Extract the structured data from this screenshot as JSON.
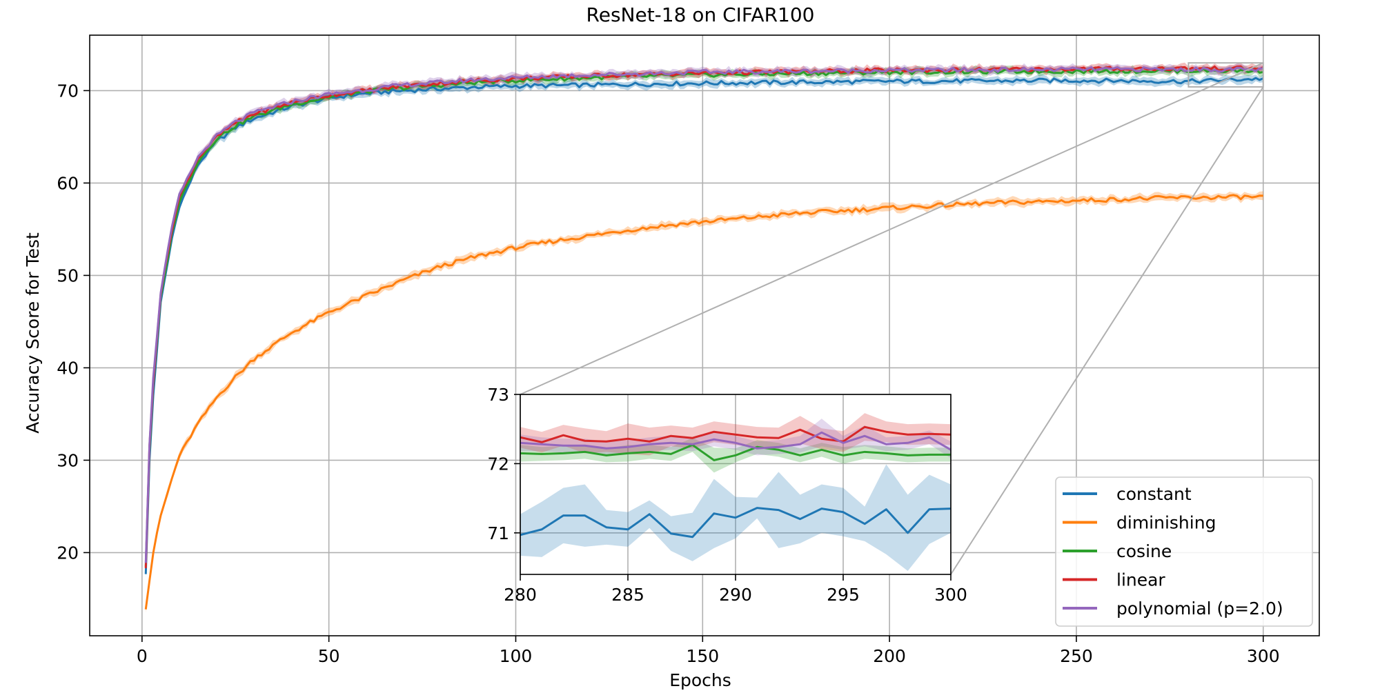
{
  "chart_data": {
    "type": "line",
    "title": "ResNet-18 on CIFAR100",
    "xlabel": "Epochs",
    "ylabel": "Accuracy Score for Test",
    "xlim": [
      -14,
      315
    ],
    "ylim": [
      11,
      76
    ],
    "xticks": [
      0,
      50,
      100,
      150,
      200,
      250,
      300
    ],
    "yticks": [
      20,
      30,
      40,
      50,
      60,
      70
    ],
    "grid": true,
    "legend_position": "lower-right",
    "series": [
      {
        "name": "constant",
        "color": "#1f77b4",
        "points": [
          [
            1,
            17.6
          ],
          [
            2,
            30
          ],
          [
            3,
            37
          ],
          [
            5,
            47
          ],
          [
            8,
            54
          ],
          [
            10,
            57.5
          ],
          [
            15,
            62
          ],
          [
            20,
            64.5
          ],
          [
            25,
            66
          ],
          [
            30,
            67
          ],
          [
            40,
            68.3
          ],
          [
            50,
            69.2
          ],
          [
            60,
            69.7
          ],
          [
            70,
            70
          ],
          [
            80,
            70.2
          ],
          [
            90,
            70.4
          ],
          [
            100,
            70.5
          ],
          [
            120,
            70.6
          ],
          [
            150,
            70.8
          ],
          [
            200,
            71
          ],
          [
            250,
            71.1
          ],
          [
            280,
            71
          ],
          [
            300,
            71.3
          ]
        ]
      },
      {
        "name": "diminishing",
        "color": "#ff7f0e",
        "points": [
          [
            1,
            14
          ],
          [
            2,
            17
          ],
          [
            3,
            20
          ],
          [
            5,
            24
          ],
          [
            8,
            28
          ],
          [
            10,
            30.5
          ],
          [
            15,
            34
          ],
          [
            20,
            36.8
          ],
          [
            25,
            39
          ],
          [
            30,
            41
          ],
          [
            40,
            43.8
          ],
          [
            50,
            46
          ],
          [
            60,
            47.8
          ],
          [
            70,
            49.5
          ],
          [
            80,
            51
          ],
          [
            90,
            52.1
          ],
          [
            100,
            53
          ],
          [
            110,
            53.7
          ],
          [
            120,
            54.3
          ],
          [
            130,
            54.9
          ],
          [
            140,
            55.4
          ],
          [
            150,
            55.8
          ],
          [
            175,
            56.7
          ],
          [
            200,
            57.3
          ],
          [
            225,
            57.8
          ],
          [
            250,
            58.1
          ],
          [
            275,
            58.4
          ],
          [
            300,
            58.5
          ]
        ]
      },
      {
        "name": "cosine",
        "color": "#2ca02c",
        "points": [
          [
            1,
            18.5
          ],
          [
            2,
            31
          ],
          [
            3,
            38
          ],
          [
            5,
            47.5
          ],
          [
            8,
            54.5
          ],
          [
            10,
            58
          ],
          [
            15,
            62.3
          ],
          [
            20,
            64.8
          ],
          [
            25,
            66.2
          ],
          [
            30,
            67.2
          ],
          [
            40,
            68.5
          ],
          [
            50,
            69.3
          ],
          [
            60,
            69.9
          ],
          [
            70,
            70.3
          ],
          [
            80,
            70.6
          ],
          [
            90,
            70.9
          ],
          [
            100,
            71.1
          ],
          [
            120,
            71.4
          ],
          [
            150,
            71.7
          ],
          [
            200,
            72
          ],
          [
            250,
            72.1
          ],
          [
            280,
            72.15
          ],
          [
            300,
            72.15
          ]
        ]
      },
      {
        "name": "linear",
        "color": "#d62728",
        "points": [
          [
            1,
            18.2
          ],
          [
            2,
            31.5
          ],
          [
            3,
            38.5
          ],
          [
            5,
            48
          ],
          [
            8,
            55
          ],
          [
            10,
            58.5
          ],
          [
            15,
            62.7
          ],
          [
            20,
            65
          ],
          [
            25,
            66.5
          ],
          [
            30,
            67.5
          ],
          [
            40,
            68.7
          ],
          [
            50,
            69.5
          ],
          [
            60,
            70
          ],
          [
            70,
            70.5
          ],
          [
            80,
            70.8
          ],
          [
            90,
            71.1
          ],
          [
            100,
            71.3
          ],
          [
            120,
            71.6
          ],
          [
            150,
            71.9
          ],
          [
            200,
            72.2
          ],
          [
            250,
            72.35
          ],
          [
            280,
            72.4
          ],
          [
            300,
            72.4
          ]
        ]
      },
      {
        "name": "polynomial (p=2.0)",
        "color": "#9467bd",
        "points": [
          [
            1,
            19
          ],
          [
            2,
            31.8
          ],
          [
            3,
            38.8
          ],
          [
            5,
            48.2
          ],
          [
            8,
            55.2
          ],
          [
            10,
            58.7
          ],
          [
            15,
            62.8
          ],
          [
            20,
            65.1
          ],
          [
            25,
            66.6
          ],
          [
            30,
            67.6
          ],
          [
            40,
            68.8
          ],
          [
            50,
            69.6
          ],
          [
            60,
            70.1
          ],
          [
            70,
            70.6
          ],
          [
            80,
            70.9
          ],
          [
            90,
            71.2
          ],
          [
            100,
            71.4
          ],
          [
            120,
            71.7
          ],
          [
            150,
            72
          ],
          [
            200,
            72.2
          ],
          [
            250,
            72.3
          ],
          [
            280,
            72.3
          ],
          [
            300,
            72.25
          ]
        ]
      }
    ],
    "inset": {
      "xlim": [
        280,
        300
      ],
      "ylim": [
        70.4,
        73
      ],
      "xticks": [
        280,
        285,
        290,
        295,
        300
      ],
      "yticks": [
        71,
        72,
        73
      ],
      "series": [
        {
          "name": "constant",
          "color": "#1f77b4",
          "values": [
            70.97,
            71.05,
            71.25,
            71.25,
            71.08,
            71.05,
            71.27,
            70.99,
            70.94,
            71.28,
            71.22,
            71.36,
            71.33,
            71.2,
            71.35,
            71.3,
            71.13,
            71.34,
            71.0,
            71.34,
            71.35
          ],
          "band": [
            0.3,
            0.4,
            0.4,
            0.45,
            0.25,
            0.25,
            0.2,
            0.25,
            0.35,
            0.5,
            0.3,
            0.15,
            0.55,
            0.35,
            0.35,
            0.35,
            0.25,
            0.65,
            0.55,
            0.5,
            0.35
          ]
        },
        {
          "name": "cosine",
          "color": "#2ca02c",
          "values": [
            72.15,
            72.14,
            72.15,
            72.17,
            72.12,
            72.15,
            72.17,
            72.14,
            72.27,
            72.05,
            72.12,
            72.24,
            72.2,
            72.12,
            72.2,
            72.12,
            72.17,
            72.15,
            72.12,
            72.13,
            72.13
          ],
          "band": [
            0.12,
            0.1,
            0.1,
            0.1,
            0.1,
            0.12,
            0.1,
            0.1,
            0.1,
            0.18,
            0.1,
            0.1,
            0.1,
            0.1,
            0.1,
            0.12,
            0.1,
            0.1,
            0.1,
            0.1,
            0.1
          ]
        },
        {
          "name": "linear",
          "color": "#d62728",
          "values": [
            72.38,
            72.31,
            72.41,
            72.33,
            72.32,
            72.36,
            72.32,
            72.4,
            72.37,
            72.46,
            72.42,
            72.38,
            72.37,
            72.49,
            72.36,
            72.32,
            72.53,
            72.46,
            72.42,
            72.43,
            72.42
          ],
          "band": [
            0.15,
            0.15,
            0.15,
            0.18,
            0.15,
            0.22,
            0.2,
            0.15,
            0.15,
            0.15,
            0.15,
            0.15,
            0.15,
            0.2,
            0.15,
            0.15,
            0.2,
            0.15,
            0.15,
            0.15,
            0.15
          ]
        },
        {
          "name": "polynomial (p=2.0)",
          "color": "#9467bd",
          "values": [
            72.3,
            72.28,
            72.26,
            72.26,
            72.22,
            72.24,
            72.28,
            72.3,
            72.28,
            72.35,
            72.3,
            72.22,
            72.24,
            72.28,
            72.45,
            72.3,
            72.4,
            72.28,
            72.3,
            72.38,
            72.2
          ],
          "band": [
            0.12,
            0.1,
            0.1,
            0.1,
            0.1,
            0.1,
            0.1,
            0.1,
            0.1,
            0.1,
            0.1,
            0.1,
            0.1,
            0.12,
            0.2,
            0.1,
            0.15,
            0.1,
            0.1,
            0.1,
            0.12
          ]
        }
      ]
    }
  }
}
